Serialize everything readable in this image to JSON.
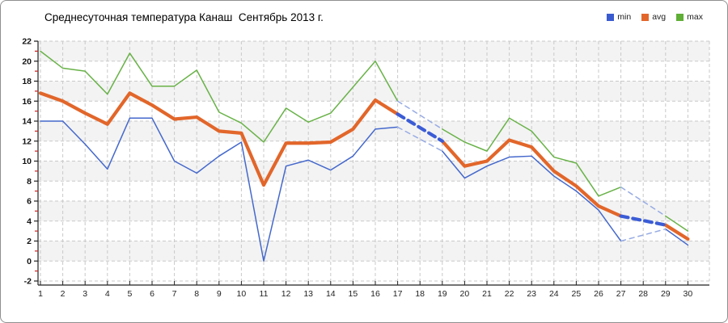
{
  "title": "Среднесуточная температура Канаш  Сентябрь 2013 г.",
  "legend": [
    {
      "label": "min",
      "color": "#3a5bd0"
    },
    {
      "label": "avg",
      "color": "#e2662a"
    },
    {
      "label": "max",
      "color": "#5fae36"
    }
  ],
  "colors": {
    "min_line": "#4468cc",
    "avg_line": "#e2662a",
    "max_line": "#68b247",
    "gap_thin_dash": "#97abe4",
    "gap_thick_dash": "#3b5cd6",
    "grid": "#c9c9c9",
    "band_grey": "#f3f3f3",
    "axis": "#222222",
    "minor_tick_red": "#cc2222"
  },
  "chart_data": {
    "type": "line",
    "title": "Среднесуточная температура Канаш  Сентябрь 2013 г.",
    "xlabel": "",
    "ylabel": "",
    "x": [
      1,
      2,
      3,
      4,
      5,
      6,
      7,
      8,
      9,
      10,
      11,
      12,
      13,
      14,
      15,
      16,
      17,
      18,
      19,
      20,
      21,
      22,
      23,
      24,
      25,
      26,
      27,
      28,
      29,
      30
    ],
    "x_tick_labels": [
      "1",
      "2",
      "3",
      "4",
      "5",
      "6",
      "7",
      "8",
      "9",
      "10",
      "11",
      "12",
      "13",
      "14",
      "15",
      "16",
      "17",
      "18",
      "19",
      "20",
      "21",
      "22",
      "23",
      "24",
      "25",
      "26",
      "27",
      "28",
      "29",
      "30"
    ],
    "y_tick_labels": [
      "22",
      "20",
      "18",
      "16",
      "14",
      "12",
      "10",
      "8",
      "6",
      "4",
      "2",
      "0",
      "-2"
    ],
    "ylim": [
      -2,
      22
    ],
    "ytick_step": 2,
    "grid": true,
    "legend_position": "top-right",
    "missing_days": [
      18,
      28
    ],
    "gap_note": "gaps bridged by straight blue dashed interpolation segments (thin for min/max, thick for avg)",
    "series": [
      {
        "name": "max",
        "values": [
          21.0,
          19.3,
          19.0,
          16.7,
          20.8,
          17.5,
          17.5,
          19.1,
          14.9,
          13.8,
          11.9,
          15.3,
          13.9,
          14.8,
          17.4,
          20.0,
          16.0,
          null,
          13.2,
          11.9,
          11.0,
          14.3,
          13.0,
          10.4,
          9.8,
          6.5,
          7.4,
          null,
          4.5,
          3.0
        ]
      },
      {
        "name": "min",
        "values": [
          14.0,
          14.0,
          11.7,
          9.2,
          14.3,
          14.3,
          10.0,
          8.8,
          10.5,
          11.9,
          0.0,
          9.5,
          10.1,
          9.1,
          10.5,
          13.2,
          13.4,
          null,
          11.0,
          8.3,
          9.5,
          10.4,
          10.5,
          8.5,
          7.0,
          5.1,
          2.0,
          null,
          3.2,
          1.6
        ]
      },
      {
        "name": "avg",
        "values": [
          16.8,
          16.0,
          14.8,
          13.7,
          16.8,
          15.6,
          14.2,
          14.4,
          13.0,
          12.8,
          7.6,
          11.8,
          11.8,
          11.9,
          13.2,
          16.1,
          14.7,
          null,
          12.0,
          9.5,
          10.0,
          12.1,
          11.4,
          9.0,
          7.5,
          5.5,
          4.5,
          null,
          3.6,
          2.2
        ]
      }
    ]
  }
}
